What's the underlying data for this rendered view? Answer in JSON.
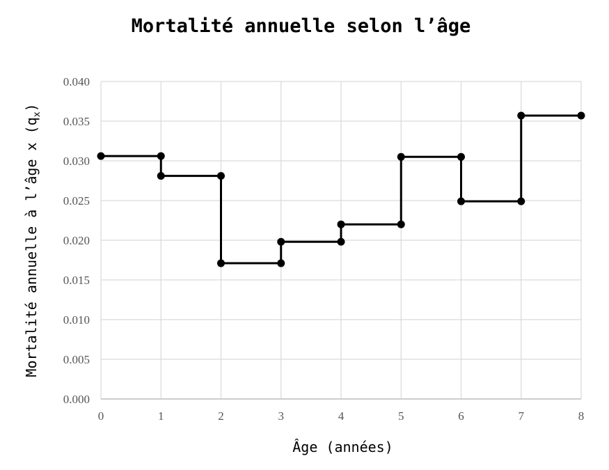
{
  "chart_data": {
    "type": "line",
    "step": "post",
    "title": "Mortalité annuelle selon l’âge",
    "xlabel": "Âge (années)",
    "ylabel_main": "Mortalité annuelle à l’âge x (q",
    "ylabel_sub": "x",
    "ylabel_close": ")",
    "xlim": [
      0,
      8
    ],
    "ylim": [
      0,
      0.04
    ],
    "xticks": [
      "0",
      "1",
      "2",
      "3",
      "4",
      "5",
      "6",
      "7",
      "8"
    ],
    "yticks": [
      "0.000",
      "0.005",
      "0.010",
      "0.015",
      "0.020",
      "0.025",
      "0.030",
      "0.035",
      "0.040"
    ],
    "grid": true,
    "legend": "none",
    "series": [
      {
        "points": [
          [
            0,
            0.0306
          ],
          [
            1,
            0.0306
          ],
          [
            1,
            0.0281
          ],
          [
            2,
            0.0281
          ],
          [
            2,
            0.0171
          ],
          [
            3,
            0.0171
          ],
          [
            3,
            0.0198
          ],
          [
            4,
            0.0198
          ],
          [
            4,
            0.022
          ],
          [
            5,
            0.022
          ],
          [
            5,
            0.0305
          ],
          [
            6,
            0.0305
          ],
          [
            6,
            0.0249
          ],
          [
            7,
            0.0249
          ],
          [
            7,
            0.0357
          ],
          [
            8,
            0.0357
          ]
        ]
      }
    ],
    "colors": {
      "line": "#000000",
      "grid": "#d9d9d9",
      "axis": "#bfbfbf"
    }
  }
}
